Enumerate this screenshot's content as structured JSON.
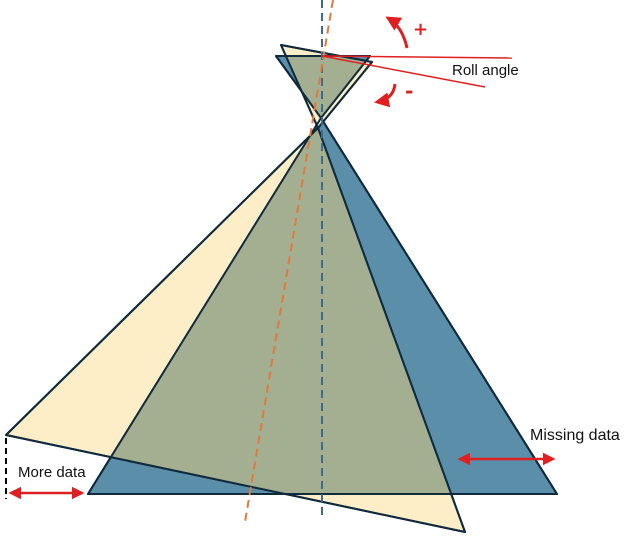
{
  "labels": {
    "roll_angle": "Roll angle",
    "missing_data": "Missing data",
    "more_data": "More data",
    "plus_sign": "+",
    "minus_sign": "-"
  },
  "colors": {
    "yellow_fill": "#fdeec8",
    "blue_fill": "#5b8ea9",
    "overlap_fill": "#a3af90",
    "outline": "#0f2a3c",
    "vertical_axis": "#3d6a8e",
    "tilted_axis": "#e07a3e",
    "annotation_red": "#e02020",
    "dashed_black": "#000000"
  }
}
